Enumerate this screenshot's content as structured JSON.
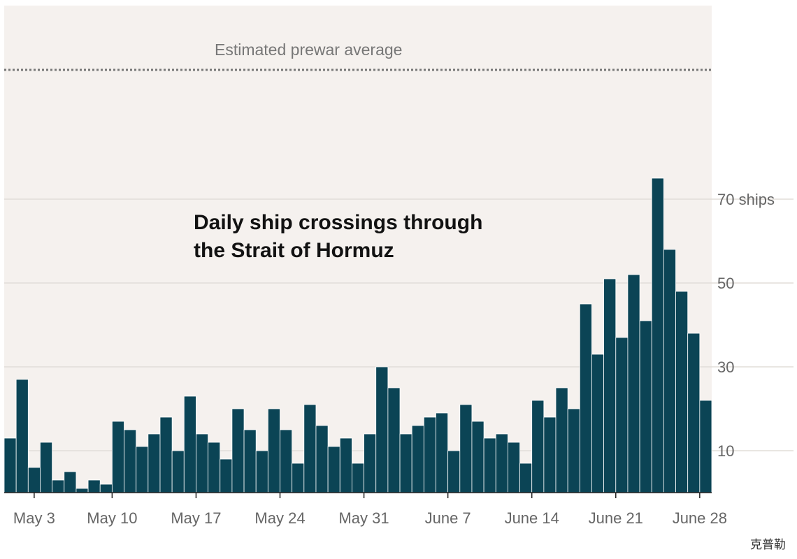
{
  "chart_data": {
    "type": "bar",
    "title_lines": [
      "Daily ship crossings through",
      "the Strait of Hormuz"
    ],
    "reference_line": {
      "label": "Estimated prewar average"
    },
    "y_ticks": [
      {
        "value": 10,
        "label": "10"
      },
      {
        "value": 30,
        "label": "30"
      },
      {
        "value": 50,
        "label": "50"
      },
      {
        "value": 70,
        "label": "70 ships"
      }
    ],
    "ylim": [
      0,
      115
    ],
    "grid": true,
    "x_ticks": [
      {
        "index": 2,
        "label": "May 3"
      },
      {
        "index": 9,
        "label": "May 10"
      },
      {
        "index": 16,
        "label": "May 17"
      },
      {
        "index": 23,
        "label": "May 24"
      },
      {
        "index": 30,
        "label": "May 31"
      },
      {
        "index": 37,
        "label": "June 7"
      },
      {
        "index": 44,
        "label": "June 14"
      },
      {
        "index": 51,
        "label": "June 21"
      },
      {
        "index": 58,
        "label": "June 28"
      }
    ],
    "values": [
      13,
      27,
      6,
      12,
      3,
      5,
      1,
      3,
      2,
      17,
      15,
      11,
      14,
      18,
      10,
      23,
      14,
      12,
      8,
      20,
      15,
      10,
      20,
      15,
      7,
      21,
      16,
      11,
      13,
      7,
      14,
      30,
      25,
      14,
      16,
      18,
      19,
      10,
      21,
      17,
      13,
      14,
      12,
      7,
      22,
      18,
      25,
      20,
      45,
      33,
      51,
      37,
      52,
      41,
      75,
      58,
      48,
      38,
      22
    ],
    "credit": "克普勒"
  },
  "colors": {
    "bar": "#0b4455",
    "plot_background": "#f5f1ee",
    "gridline": "#e2ddd9",
    "reference_line": "#777777",
    "axis": "#222222"
  }
}
